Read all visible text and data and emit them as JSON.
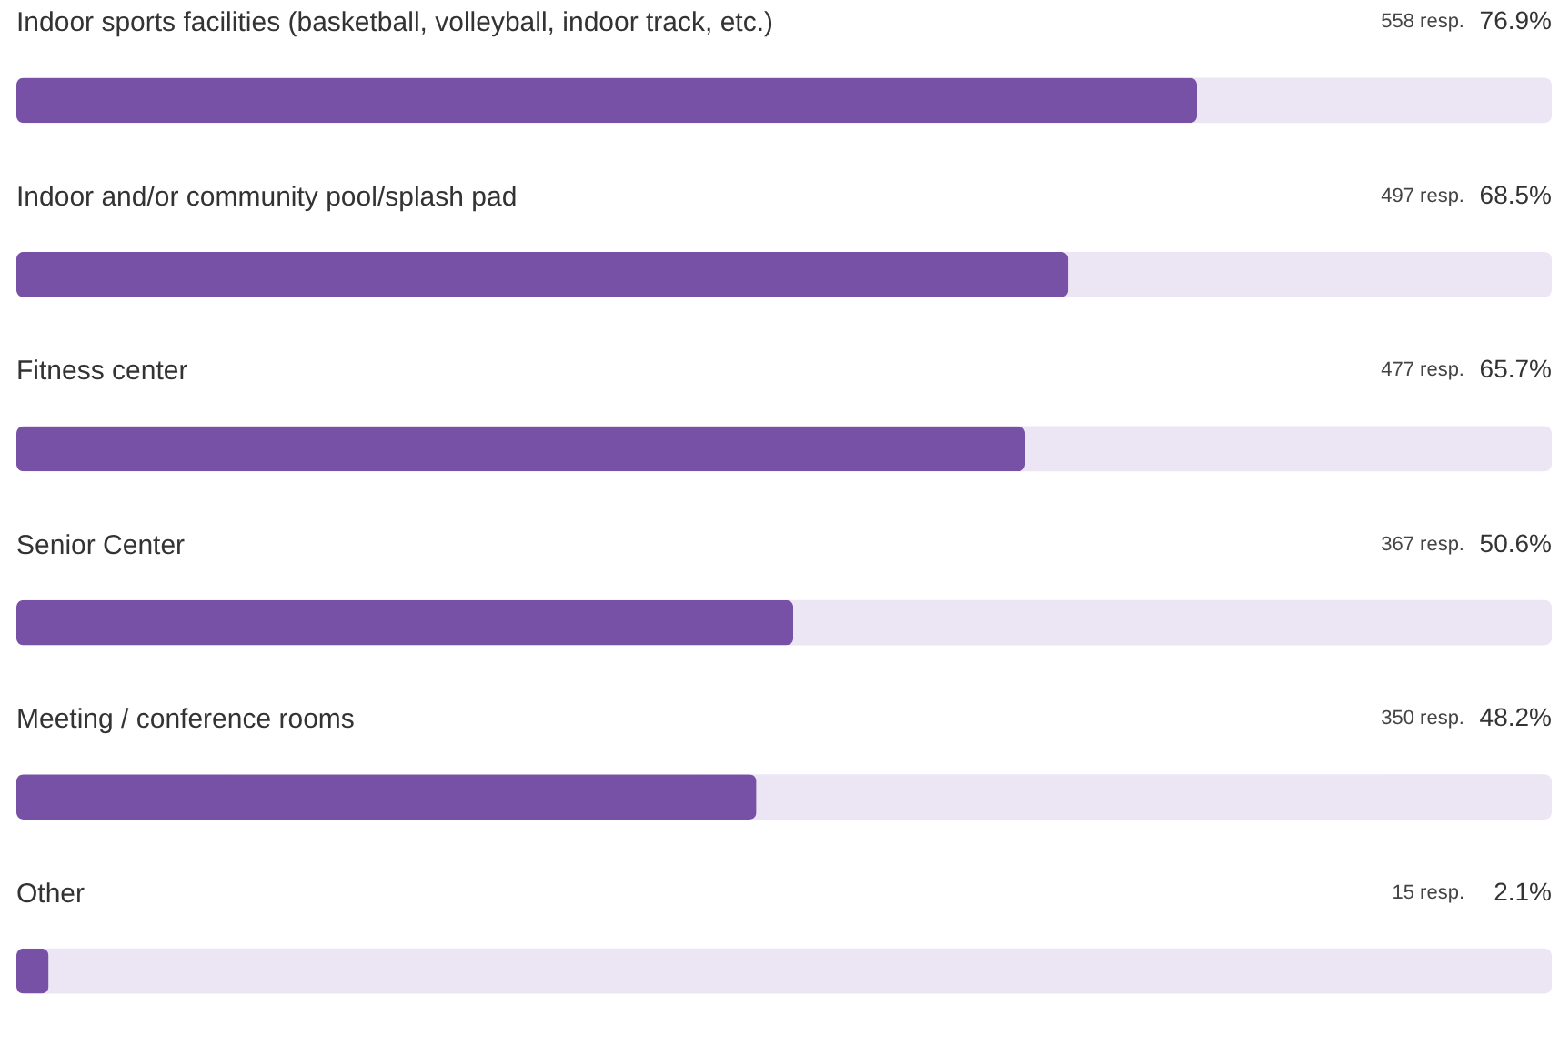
{
  "chart_data": {
    "type": "bar",
    "orientation": "horizontal",
    "categories": [
      "Indoor sports facilities (basketball, volleyball, indoor track, etc.)",
      "Indoor and/or community pool/splash pad",
      "Fitness center",
      "Senior Center",
      "Meeting / conference rooms",
      "Other"
    ],
    "values": [
      76.9,
      68.5,
      65.7,
      50.6,
      48.2,
      2.1
    ],
    "value_labels": [
      "76.9%",
      "68.5%",
      "65.7%",
      "50.6%",
      "48.2%",
      "2.1%"
    ],
    "color": "#7651a5",
    "xlim": [
      0,
      100
    ],
    "tick_labels": false,
    "annotations": [
      "558 resp.",
      "497 resp.",
      "477 resp.",
      "367 resp.",
      "350 resp.",
      "15 resp."
    ]
  }
}
